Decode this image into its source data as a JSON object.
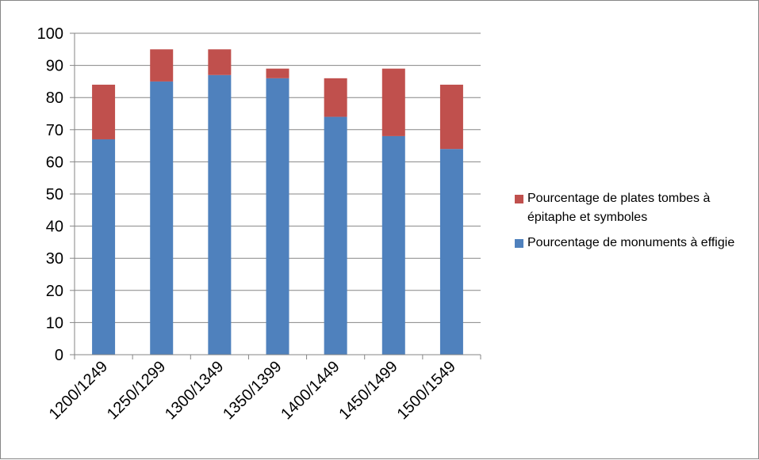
{
  "chart_data": {
    "type": "bar",
    "stacked": true,
    "categories": [
      "1200/1249",
      "1250/1299",
      "1300/1349",
      "1350/1399",
      "1400/1449",
      "1450/1499",
      "1500/1549"
    ],
    "series": [
      {
        "name": "Pourcentage de monuments à effigie",
        "color": "#4F81BD",
        "values": [
          67,
          85,
          87,
          86,
          74,
          68,
          64
        ]
      },
      {
        "name": "Pourcentage de plates tombes à épitaphe et symboles",
        "color": "#C0504D",
        "values": [
          17,
          10,
          8,
          3,
          12,
          21,
          20
        ]
      }
    ],
    "title": "",
    "xlabel": "",
    "ylabel": "",
    "ylim": [
      0,
      100
    ],
    "yticks": [
      0,
      10,
      20,
      30,
      40,
      50,
      60,
      70,
      80,
      90,
      100
    ],
    "grid": true,
    "legend_position": "right"
  }
}
